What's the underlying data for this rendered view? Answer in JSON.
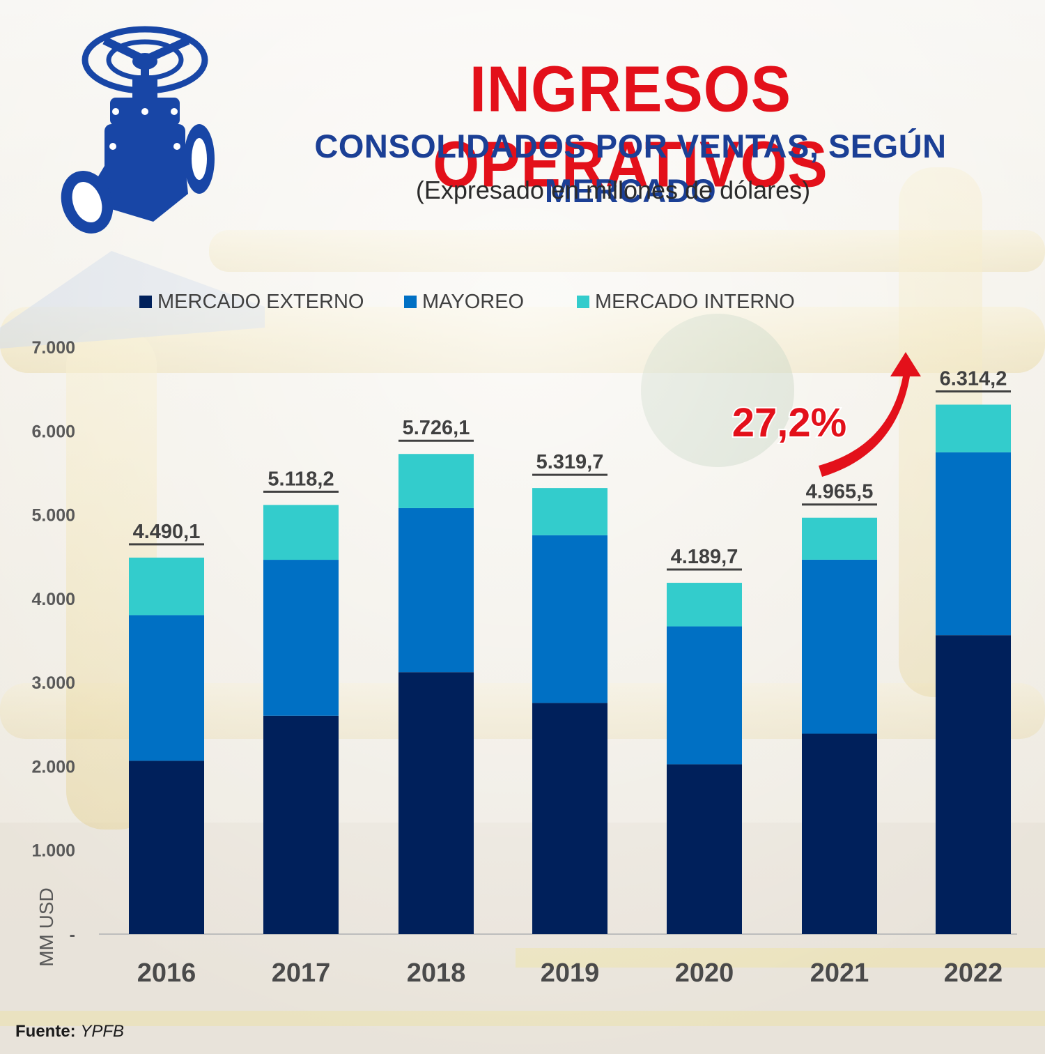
{
  "header": {
    "title": "INGRESOS OPERATIVOS",
    "subtitle": "CONSOLIDADOS POR VENTAS, SEGÚN MERCADO",
    "unit_note": "(Expresado en millones de dólares)"
  },
  "footer": {
    "source_label": "Fuente:",
    "source_value": "YPFB"
  },
  "growth_annotation": "27,2%",
  "colors": {
    "externo": "#00205b",
    "mayoreo": "#0070c4",
    "interno": "#33cccc",
    "title_red": "#e3101a",
    "title_blue": "#1b3f95",
    "arrow_red": "#e3101a",
    "logo_blue": "#1846a6"
  },
  "icons": [
    "valve-pipe-icon",
    "growth-arrow-icon"
  ],
  "chart_data": {
    "type": "bar",
    "stacked": true,
    "categories": [
      "2016",
      "2017",
      "2018",
      "2019",
      "2020",
      "2021",
      "2022"
    ],
    "series": [
      {
        "name": "MERCADO EXTERNO",
        "values": [
          2067,
          2604,
          3124,
          2757,
          2025,
          2390,
          3565
        ]
      },
      {
        "name": "MAYOREO",
        "values": [
          1737,
          1860,
          1956,
          2000,
          1645,
          2075,
          2181
        ]
      },
      {
        "name": "MERCADO INTERNO",
        "values": [
          686.1,
          654.2,
          646.1,
          562.7,
          519.7,
          500.5,
          568.2
        ]
      }
    ],
    "totals": [
      "4.490,1",
      "5.118,2",
      "5.726,1",
      "5.319,7",
      "4.189,7",
      "4.965,5",
      "6.314,2"
    ],
    "ylabel": "MM USD",
    "ylim": [
      0,
      7000
    ],
    "yticks": [
      0,
      1000,
      2000,
      3000,
      4000,
      5000,
      6000,
      7000
    ],
    "ytick_labels": [
      "-",
      "1.000",
      "2.000",
      "3.000",
      "4.000",
      "5.000",
      "6.000",
      "7.000"
    ],
    "legend_position": "top",
    "grid": false
  }
}
